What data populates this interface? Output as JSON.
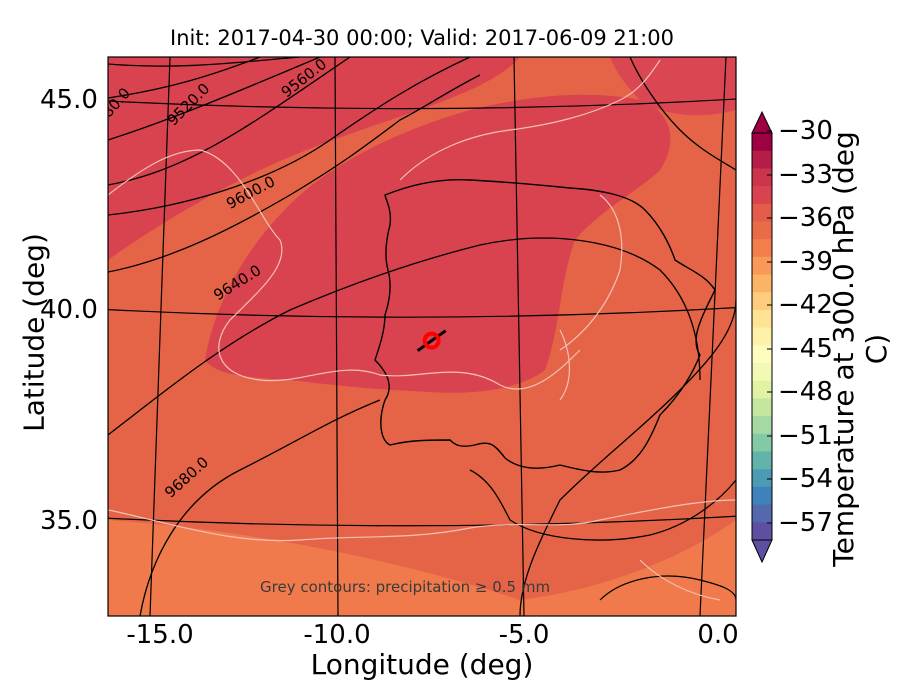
{
  "figure": {
    "title": "Init: 2017-04-30 00:00; Valid: 2017-06-09 21:00",
    "note": "Grey contours: precipitation ≥ 0.5 mm"
  },
  "chart_data": {
    "type": "heatmap",
    "title": "Init: 2017-04-30 00:00; Valid: 2017-06-09 21:00",
    "xlabel": "Longitude (deg)",
    "ylabel": "Latitude (deg)",
    "xlim": [
      -16,
      0.3
    ],
    "ylim": [
      32.8,
      46.2
    ],
    "x_ticks": [
      "-15.0",
      "-10.0",
      "-5.0",
      "0.0"
    ],
    "y_ticks": [
      "35.0",
      "40.0",
      "45.0"
    ],
    "colorbar": {
      "label": "Temperature at 300.0 hPa (deg C)",
      "range": [
        -58,
        -30
      ],
      "ticks": [
        "−30",
        "−33",
        "−36",
        "−39",
        "−42",
        "−45",
        "−48",
        "−51",
        "−54",
        "−57"
      ],
      "colormap": "Spectral_r",
      "extend": "both"
    },
    "height_contours": {
      "units": "m",
      "labels": [
        "9520.0",
        "9560.0",
        "9600.0",
        "9640.0",
        "9680.0"
      ],
      "clipped_label": "80.0"
    },
    "marker": {
      "lon": -7.6,
      "lat": 39.4,
      "color": "#ff0000"
    },
    "annotation": "Grey contours: precipitation ≥ 0.5 mm",
    "grid": true,
    "colors": {
      "warm_field": "#e46446",
      "core": "#d94450",
      "cool_south": "#f37f4e"
    }
  }
}
